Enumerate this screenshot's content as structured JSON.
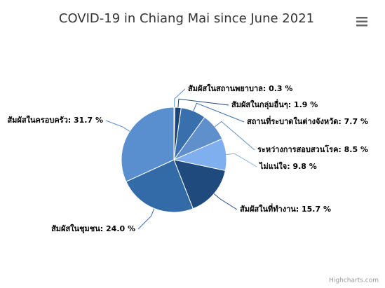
{
  "chart_data": {
    "type": "pie",
    "title": "COVID-19 in Chiang Mai since June 2021",
    "values": [
      0.3,
      1.9,
      7.7,
      8.5,
      9.8,
      15.7,
      24.0,
      31.7
    ],
    "value_labels": [
      "สัมผัสในสถานพยาบาล: 0.3 %",
      "สัมผัสในกลุ่มอื่นๆ: 1.9 %",
      "สถานที่ระบาดในต่างจังหวัด: 7.7 %",
      "ระหว่างการสอบสวนโรค: 8.5 %",
      "ไม่แน่ใจ: 9.8 %",
      "สัมผัสในที่ทำงาน: 15.7 %",
      "สัมผัสในชุมชน: 24.0 %",
      "สัมผัสในครอบครัว: 31.7 %"
    ],
    "colors": [
      "#5b8fcf",
      "#1c4477",
      "#3a6fad",
      "#5f90cc",
      "#7fafee",
      "#1e4a7e",
      "#336aa8",
      "#5a8fcf"
    ],
    "credits": "Highcharts.com"
  }
}
